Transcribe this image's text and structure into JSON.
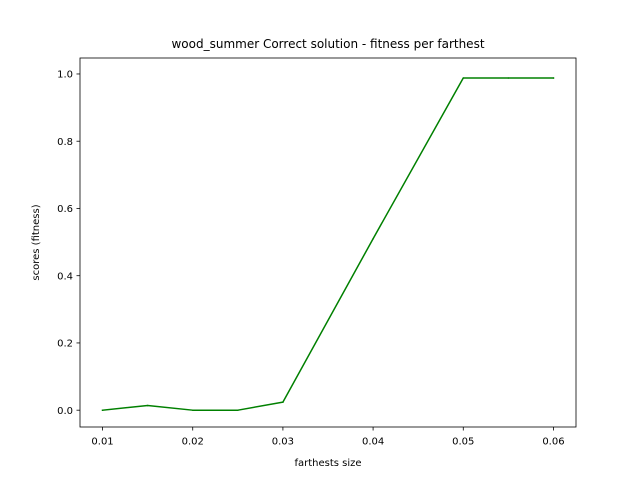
{
  "chart_data": {
    "type": "line",
    "title": "wood_summer Correct solution - fitness per farthest",
    "xlabel": "farthests size",
    "ylabel": "scores (fitness)",
    "xlim": [
      0.0075,
      0.0625
    ],
    "ylim": [
      -0.05,
      1.0475
    ],
    "xticks": [
      "0.01",
      "0.02",
      "0.03",
      "0.04",
      "0.05",
      "0.06"
    ],
    "yticks": [
      "0.0",
      "0.2",
      "0.4",
      "0.6",
      "0.8",
      "1.0"
    ],
    "grid": false,
    "series": [
      {
        "color": "#008000",
        "x": [
          0.01,
          0.015,
          0.02,
          0.025,
          0.03,
          0.04,
          0.05,
          0.055,
          0.06
        ],
        "y": [
          0.0,
          0.014,
          0.0,
          0.0,
          0.024,
          0.51,
          0.988,
          0.988,
          0.988
        ]
      }
    ]
  }
}
